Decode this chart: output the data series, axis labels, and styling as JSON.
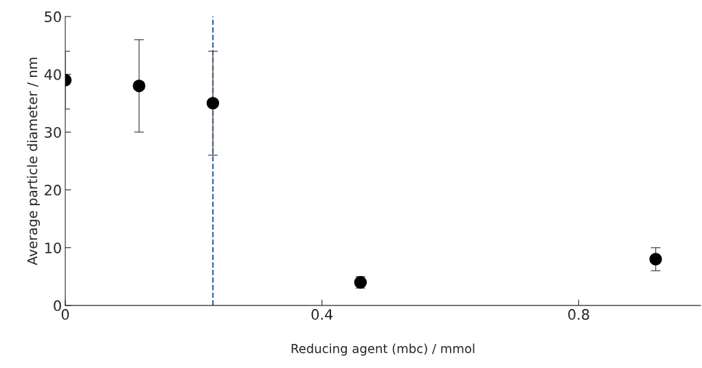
{
  "chart_data": {
    "type": "scatter",
    "xlabel": "Reducing agent (mbc) / mmol",
    "ylabel": "Average particle diameter / nm",
    "x": [
      0,
      0.115,
      0.23,
      0.46,
      0.92
    ],
    "series": [
      {
        "color": "#000000",
        "values": [
          39,
          38,
          35,
          4,
          8
        ],
        "errors": [
          5,
          8,
          9,
          1,
          2
        ]
      }
    ],
    "marker": "circle",
    "xlim": [
      0,
      0.99
    ],
    "xticks": [
      0,
      0.4,
      0.8
    ],
    "ylim": [
      0,
      50
    ],
    "yticks": [
      0,
      10,
      20,
      30,
      40,
      50
    ],
    "ref_lines": [
      {
        "axis": "x",
        "value": 0.23,
        "color": "#2e5fa8",
        "line_style": "dashed"
      }
    ],
    "grid": false,
    "legend": false
  }
}
